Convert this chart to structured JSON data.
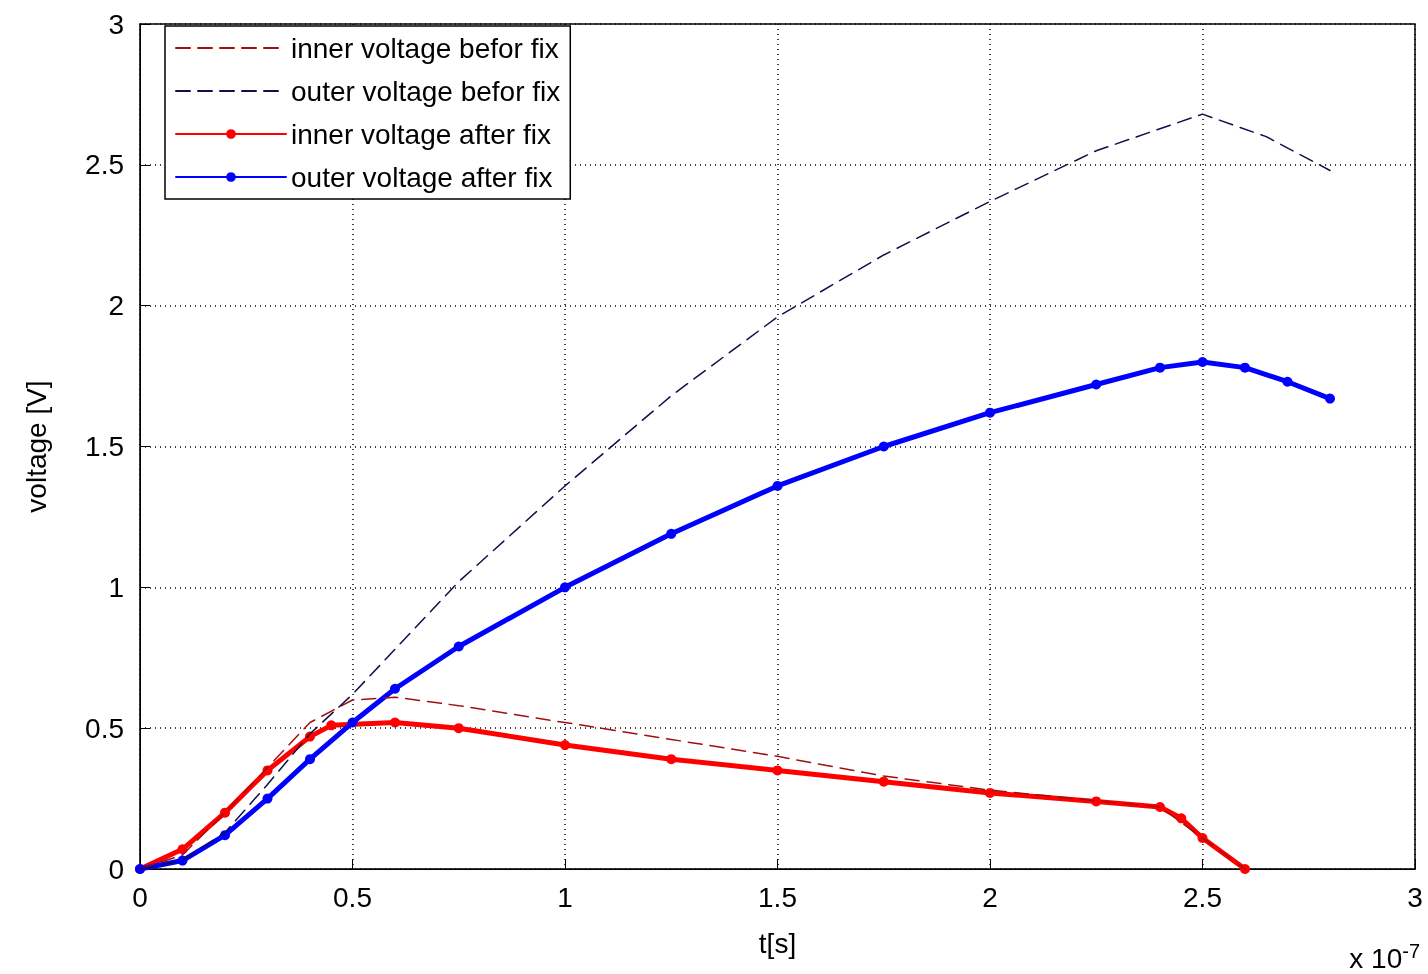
{
  "chart_data": {
    "type": "line",
    "xlabel": "t[s]",
    "ylabel": "voltage [V]",
    "annotations": [
      "x 10$^{-7}$"
    ],
    "xlim": [
      0,
      3
    ],
    "xticks": [
      0,
      0.5,
      1,
      1.5,
      2,
      2.5,
      3
    ],
    "ylim": [
      0,
      3
    ],
    "yticks": [
      0,
      0.5,
      1,
      1.5,
      2,
      2.5,
      3
    ],
    "grid": true,
    "legend": "top left",
    "series": [
      {
        "name": "inner voltage befor fix",
        "color": "#a01010",
        "line_style": "dashed",
        "marker": "none",
        "x": [
          0,
          0.1,
          0.2,
          0.3,
          0.4,
          0.5,
          0.6,
          0.75,
          1,
          1.25,
          1.5,
          1.75,
          2,
          2.4,
          2.5,
          2.6
        ],
        "values": [
          0,
          0.05,
          0.2,
          0.36,
          0.52,
          0.6,
          0.61,
          0.58,
          0.52,
          0.46,
          0.4,
          0.33,
          0.28,
          0.22,
          0.11,
          0
        ]
      },
      {
        "name": "outer voltage befor fix",
        "color": "#10104a",
        "line_style": "dashed",
        "marker": "none",
        "x": [
          0,
          0.1,
          0.2,
          0.3,
          0.4,
          0.5,
          0.75,
          1,
          1.25,
          1.5,
          1.75,
          2,
          2.25,
          2.5,
          2.65,
          2.8
        ],
        "values": [
          0,
          0.03,
          0.13,
          0.3,
          0.48,
          0.62,
          1.02,
          1.36,
          1.68,
          1.96,
          2.18,
          2.37,
          2.55,
          2.68,
          2.6,
          2.48
        ]
      },
      {
        "name": "inner voltage after fix",
        "color": "#ff0000",
        "line_style": "solid",
        "marker": "circle",
        "x": [
          0,
          0.1,
          0.2,
          0.3,
          0.4,
          0.45,
          0.6,
          0.75,
          1,
          1.25,
          1.5,
          1.75,
          2,
          2.25,
          2.4,
          2.45,
          2.5,
          2.6
        ],
        "values": [
          0,
          0.07,
          0.2,
          0.35,
          0.47,
          0.51,
          0.52,
          0.5,
          0.44,
          0.39,
          0.35,
          0.31,
          0.27,
          0.24,
          0.22,
          0.18,
          0.11,
          0
        ]
      },
      {
        "name": "outer voltage after fix",
        "color": "#0000ff",
        "line_style": "solid",
        "marker": "circle",
        "x": [
          0,
          0.1,
          0.2,
          0.3,
          0.4,
          0.5,
          0.6,
          0.75,
          1,
          1.25,
          1.5,
          1.75,
          2,
          2.25,
          2.4,
          2.5,
          2.6,
          2.7,
          2.8
        ],
        "values": [
          0,
          0.03,
          0.12,
          0.25,
          0.39,
          0.52,
          0.64,
          0.79,
          1.0,
          1.19,
          1.36,
          1.5,
          1.62,
          1.72,
          1.78,
          1.8,
          1.78,
          1.73,
          1.67
        ]
      }
    ]
  }
}
